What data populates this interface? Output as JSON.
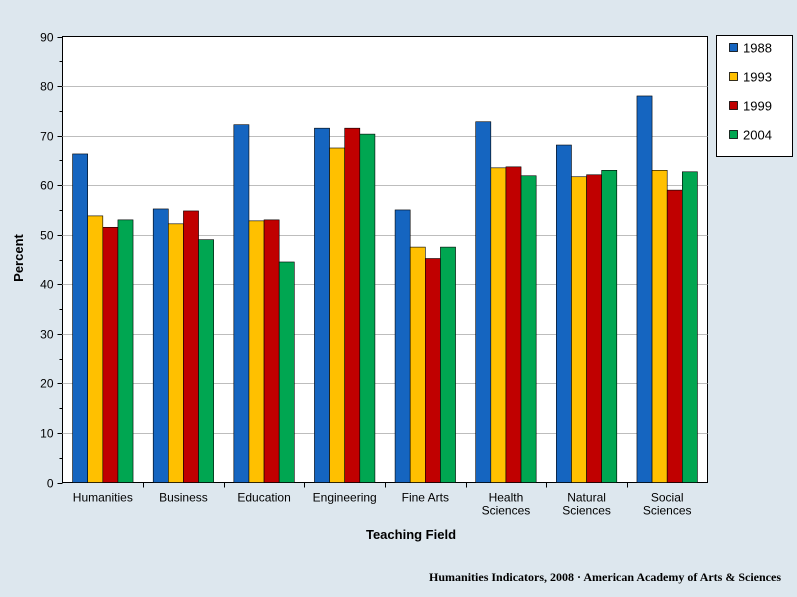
{
  "chart_data": {
    "type": "bar",
    "title": "",
    "xlabel": "Teaching Field",
    "ylabel": "Percent",
    "ylim": [
      0,
      90
    ],
    "yticks": [
      0,
      10,
      20,
      30,
      40,
      50,
      60,
      70,
      80,
      90
    ],
    "grid": true,
    "legend_position": "right",
    "categories": [
      [
        "Humanities"
      ],
      [
        "Business"
      ],
      [
        "Education"
      ],
      [
        "Engineering"
      ],
      [
        "Fine Arts"
      ],
      [
        "Health",
        "Sciences"
      ],
      [
        "Natural",
        "Sciences"
      ],
      [
        "Social",
        "Sciences"
      ]
    ],
    "series": [
      {
        "name": "1988",
        "color": "#1565c0",
        "values": [
          66.3,
          55.2,
          72.2,
          71.5,
          55.0,
          72.8,
          68.1,
          78.0
        ]
      },
      {
        "name": "1993",
        "color": "#ffc000",
        "values": [
          53.8,
          52.2,
          52.8,
          67.5,
          47.5,
          63.5,
          61.7,
          63.0
        ]
      },
      {
        "name": "1999",
        "color": "#c00000",
        "values": [
          51.5,
          54.8,
          53.0,
          71.5,
          45.2,
          63.7,
          62.1,
          59.0
        ]
      },
      {
        "name": "2004",
        "color": "#00a651",
        "values": [
          53.0,
          49.0,
          44.5,
          70.3,
          47.5,
          61.9,
          63.0,
          62.7
        ]
      }
    ]
  },
  "footer": {
    "source": "Humanities Indicators, 2008 · American Academy of Arts & Sciences"
  }
}
